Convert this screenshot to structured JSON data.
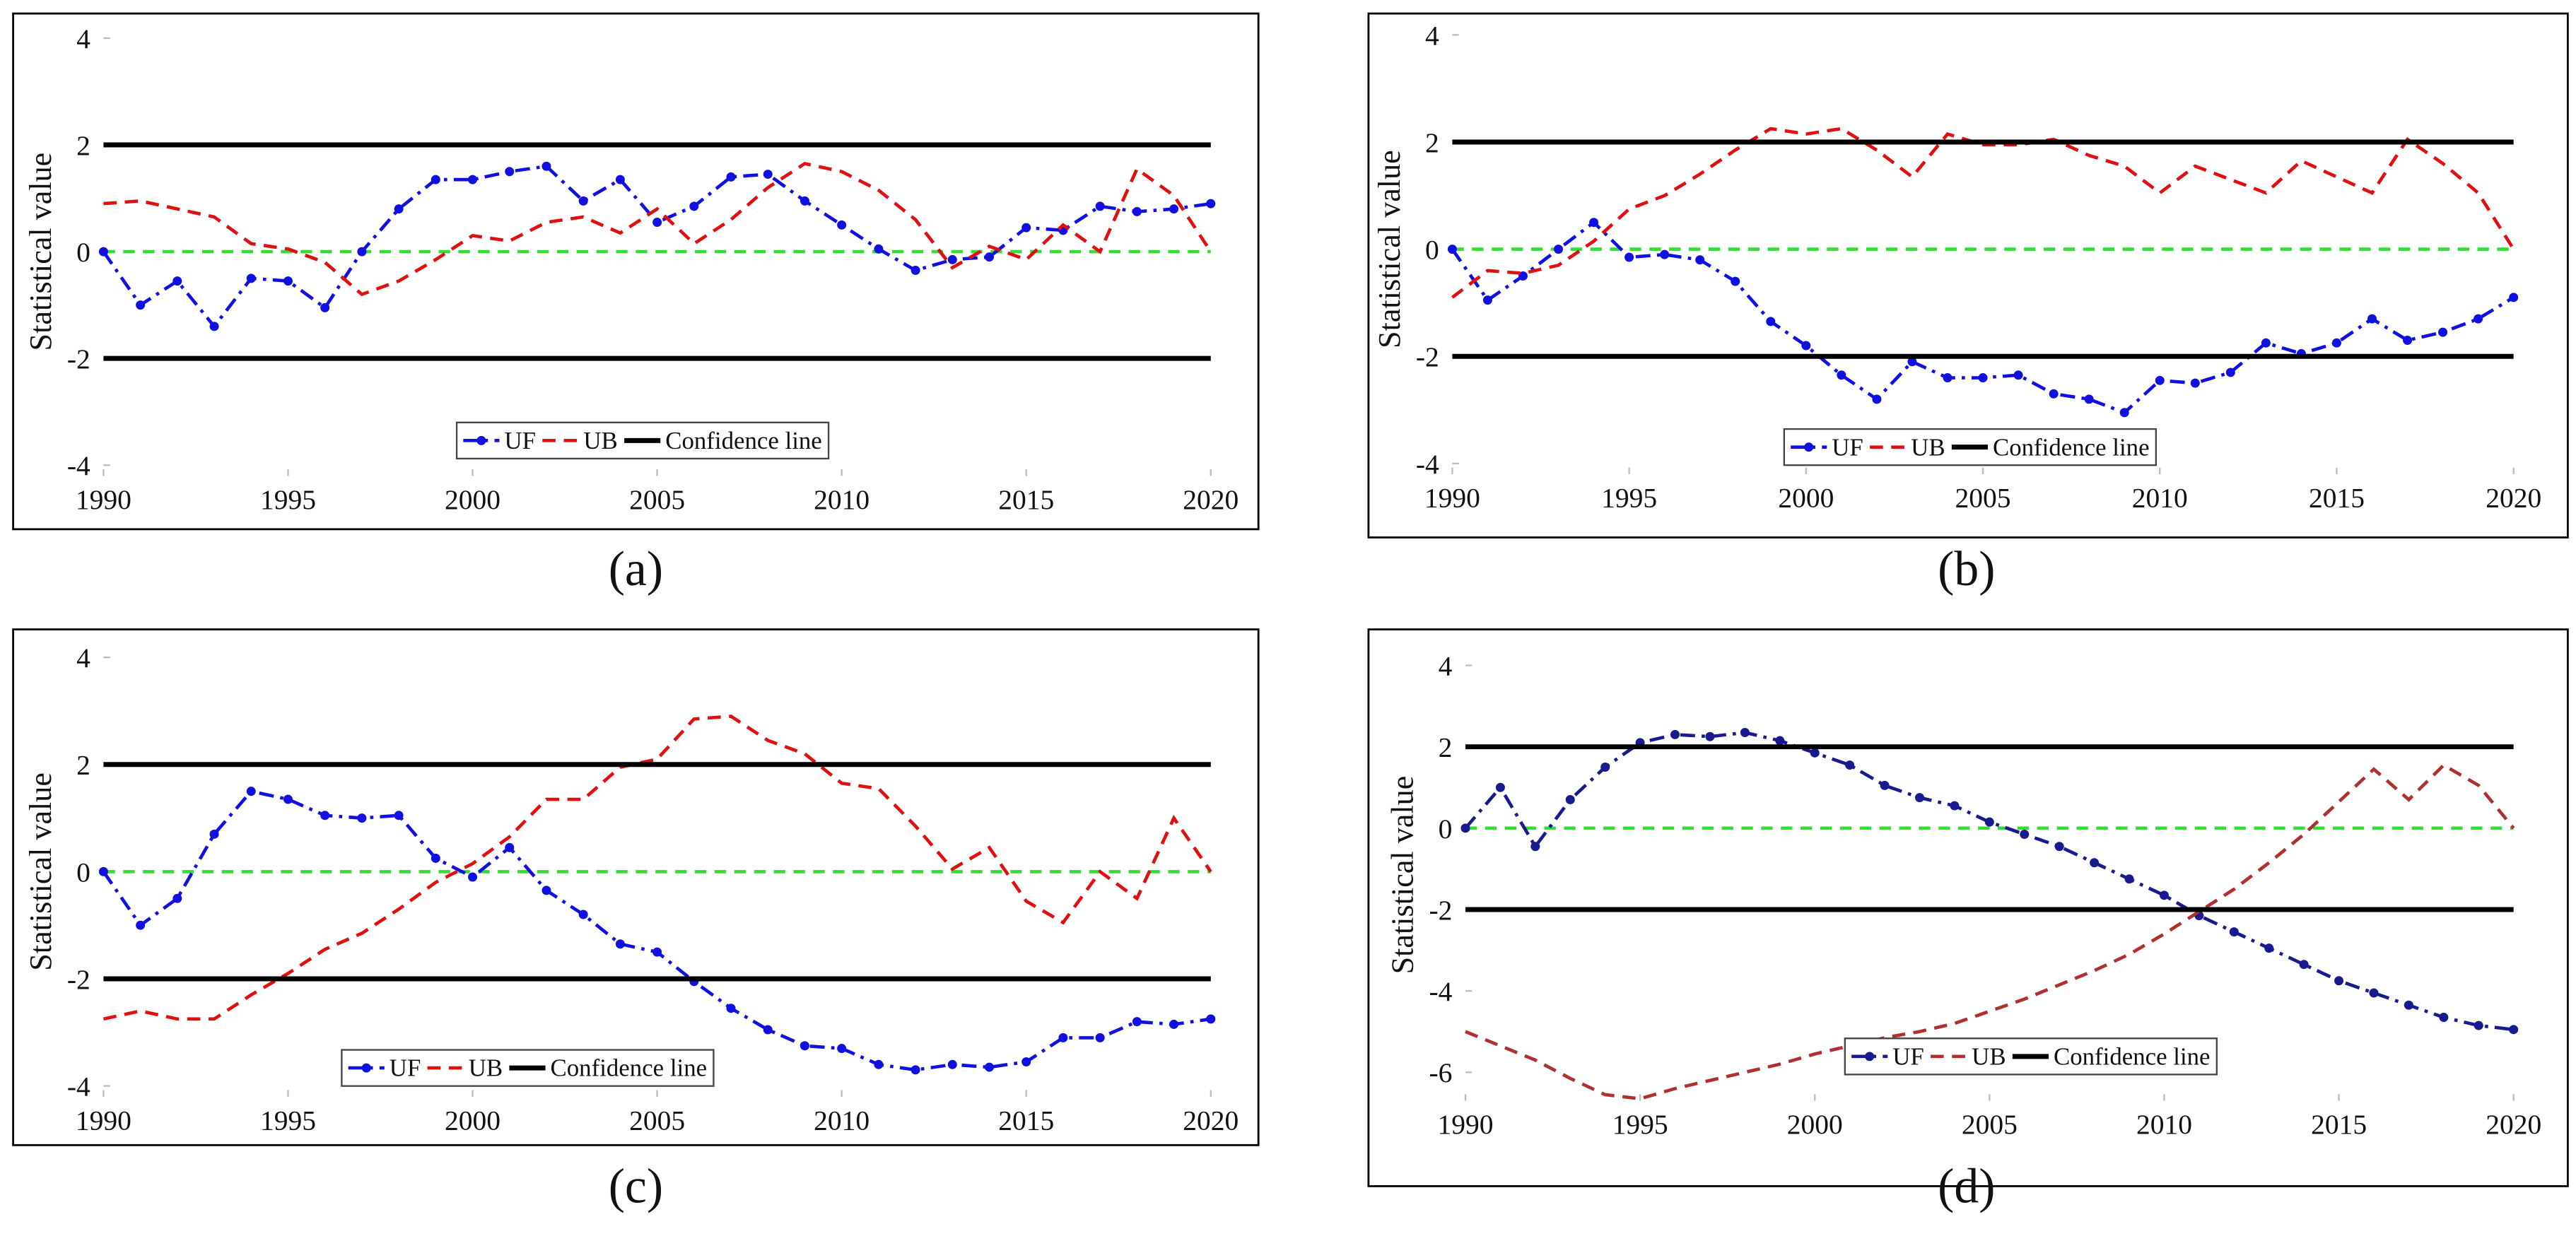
{
  "chart_data": [
    {
      "type": "line",
      "label": "(a)",
      "ylabel": "Statistical value",
      "x": [
        1990,
        1991,
        1992,
        1993,
        1994,
        1995,
        1996,
        1997,
        1998,
        1999,
        2000,
        2001,
        2002,
        2003,
        2004,
        2005,
        2006,
        2007,
        2008,
        2009,
        2010,
        2011,
        2012,
        2013,
        2014,
        2015,
        2016,
        2017,
        2018,
        2019,
        2020
      ],
      "series": [
        {
          "name": "UF",
          "color": "#1010e0",
          "values": [
            0,
            -1.0,
            -0.55,
            -1.4,
            -0.5,
            -0.55,
            -1.05,
            0,
            0.8,
            1.35,
            1.35,
            1.5,
            1.6,
            0.95,
            1.35,
            0.55,
            0.85,
            1.4,
            1.45,
            0.95,
            0.5,
            0.05,
            -0.35,
            -0.15,
            -0.1,
            0.45,
            0.4,
            0.85,
            0.75,
            0.8,
            0.9
          ]
        },
        {
          "name": "UB",
          "color": "#e01010",
          "values": [
            0.9,
            0.95,
            0.8,
            0.65,
            0.15,
            0.05,
            -0.2,
            -0.8,
            -0.55,
            -0.15,
            0.3,
            0.2,
            0.55,
            0.65,
            0.35,
            0.8,
            0.15,
            0.6,
            1.2,
            1.65,
            1.5,
            1.15,
            0.6,
            -0.3,
            0.1,
            -0.15,
            0.5,
            0,
            1.55,
            1.05,
            0
          ]
        },
        {
          "name": "Confidence line",
          "color": "#000000",
          "levels": [
            2,
            -2
          ]
        }
      ],
      "baseline": 0,
      "baseline_color": "#33dd33",
      "xlim": [
        1990,
        2020
      ],
      "xticks": [
        1990,
        1995,
        2000,
        2005,
        2010,
        2015,
        2020
      ],
      "ylim": [
        -4.2,
        4.2
      ],
      "yticks": [
        -4,
        -2,
        0,
        2,
        4
      ]
    },
    {
      "type": "line",
      "label": "(b)",
      "ylabel": "Statistical value",
      "x": [
        1990,
        1991,
        1992,
        1993,
        1994,
        1995,
        1996,
        1997,
        1998,
        1999,
        2000,
        2001,
        2002,
        2003,
        2004,
        2005,
        2006,
        2007,
        2008,
        2009,
        2010,
        2011,
        2012,
        2013,
        2014,
        2015,
        2016,
        2017,
        2018,
        2019,
        2020
      ],
      "series": [
        {
          "name": "UF",
          "color": "#1010e0",
          "values": [
            0,
            -0.95,
            -0.5,
            0,
            0.5,
            -0.15,
            -0.1,
            -0.2,
            -0.6,
            -1.35,
            -1.8,
            -2.35,
            -2.8,
            -2.1,
            -2.4,
            -2.4,
            -2.35,
            -2.7,
            -2.8,
            -3.05,
            -2.45,
            -2.5,
            -2.3,
            -1.75,
            -1.95,
            -1.75,
            -1.3,
            -1.7,
            -1.55,
            -1.3,
            -0.9
          ]
        },
        {
          "name": "UB",
          "color": "#e01010",
          "values": [
            -0.9,
            -0.4,
            -0.45,
            -0.3,
            0.15,
            0.75,
            1.0,
            1.4,
            1.85,
            2.25,
            2.15,
            2.25,
            1.85,
            1.35,
            2.15,
            1.95,
            1.95,
            2.05,
            1.75,
            1.55,
            1.05,
            1.55,
            1.3,
            1.05,
            1.65,
            1.35,
            1.05,
            2.05,
            1.6,
            1.05,
            0
          ]
        },
        {
          "name": "Confidence line",
          "color": "#000000",
          "levels": [
            2,
            -2
          ]
        }
      ],
      "baseline": 0,
      "baseline_color": "#33dd33",
      "xlim": [
        1990,
        2020
      ],
      "xticks": [
        1990,
        1995,
        2000,
        2005,
        2010,
        2015,
        2020
      ],
      "ylim": [
        -4.2,
        4.2
      ],
      "yticks": [
        -4,
        -2,
        0,
        2,
        4
      ]
    },
    {
      "type": "line",
      "label": "(c)",
      "ylabel": "Statistical value",
      "x": [
        1990,
        1991,
        1992,
        1993,
        1994,
        1995,
        1996,
        1997,
        1998,
        1999,
        2000,
        2001,
        2002,
        2003,
        2004,
        2005,
        2006,
        2007,
        2008,
        2009,
        2010,
        2011,
        2012,
        2013,
        2014,
        2015,
        2016,
        2017,
        2018,
        2019,
        2020
      ],
      "series": [
        {
          "name": "UF",
          "color": "#1010e0",
          "values": [
            0,
            -1.0,
            -0.5,
            0.7,
            1.5,
            1.35,
            1.05,
            1.0,
            1.05,
            0.25,
            -0.1,
            0.45,
            -0.35,
            -0.8,
            -1.35,
            -1.5,
            -2.05,
            -2.55,
            -2.95,
            -3.25,
            -3.3,
            -3.6,
            -3.7,
            -3.6,
            -3.65,
            -3.55,
            -3.1,
            -3.1,
            -2.8,
            -2.85,
            -2.75
          ]
        },
        {
          "name": "UB",
          "color": "#e01010",
          "values": [
            -2.75,
            -2.6,
            -2.75,
            -2.75,
            -2.3,
            -1.9,
            -1.45,
            -1.15,
            -0.7,
            -0.2,
            0.15,
            0.65,
            1.35,
            1.35,
            1.95,
            2.1,
            2.85,
            2.9,
            2.45,
            2.2,
            1.65,
            1.55,
            0.85,
            0.05,
            0.45,
            -0.55,
            -0.95,
            0,
            -0.5,
            1.0,
            0
          ]
        },
        {
          "name": "Confidence line",
          "color": "#000000",
          "levels": [
            2,
            -2
          ]
        }
      ],
      "baseline": 0,
      "baseline_color": "#33dd33",
      "xlim": [
        1990,
        2020
      ],
      "xticks": [
        1990,
        1995,
        2000,
        2005,
        2010,
        2015,
        2020
      ],
      "ylim": [
        -4.2,
        4.2
      ],
      "yticks": [
        -4,
        -2,
        0,
        2,
        4
      ]
    },
    {
      "type": "line",
      "label": "(d)",
      "ylabel": "Statistical value",
      "x": [
        1990,
        1991,
        1992,
        1993,
        1994,
        1995,
        1996,
        1997,
        1998,
        1999,
        2000,
        2001,
        2002,
        2003,
        2004,
        2005,
        2006,
        2007,
        2008,
        2009,
        2010,
        2011,
        2012,
        2013,
        2014,
        2015,
        2016,
        2017,
        2018,
        2019,
        2020
      ],
      "series": [
        {
          "name": "UF",
          "color": "#1a1a90",
          "values": [
            0,
            1.0,
            -0.45,
            0.7,
            1.5,
            2.1,
            2.3,
            2.25,
            2.35,
            2.15,
            1.85,
            1.55,
            1.05,
            0.75,
            0.55,
            0.15,
            -0.15,
            -0.45,
            -0.85,
            -1.25,
            -1.65,
            -2.15,
            -2.55,
            -2.95,
            -3.35,
            -3.75,
            -4.05,
            -4.35,
            -4.65,
            -4.85,
            -4.95
          ]
        },
        {
          "name": "UB",
          "color": "#b03030",
          "values": [
            -5.0,
            -5.35,
            -5.7,
            -6.15,
            -6.55,
            -6.65,
            -6.4,
            -6.2,
            -6.0,
            -5.8,
            -5.55,
            -5.35,
            -5.15,
            -5.0,
            -4.8,
            -4.5,
            -4.2,
            -3.85,
            -3.5,
            -3.1,
            -2.6,
            -2.05,
            -1.5,
            -0.85,
            -0.15,
            0.65,
            1.45,
            0.7,
            1.55,
            1.05,
            0
          ]
        },
        {
          "name": "Confidence line",
          "color": "#000000",
          "levels": [
            2,
            -2
          ]
        }
      ],
      "baseline": 0,
      "baseline_color": "#33dd33",
      "xlim": [
        1990,
        2020
      ],
      "xticks": [
        1990,
        1995,
        2000,
        2005,
        2010,
        2015,
        2020
      ],
      "ylim": [
        -6.7,
        4.4
      ],
      "yticks": [
        -6,
        -4,
        -2,
        0,
        2,
        4
      ]
    }
  ]
}
